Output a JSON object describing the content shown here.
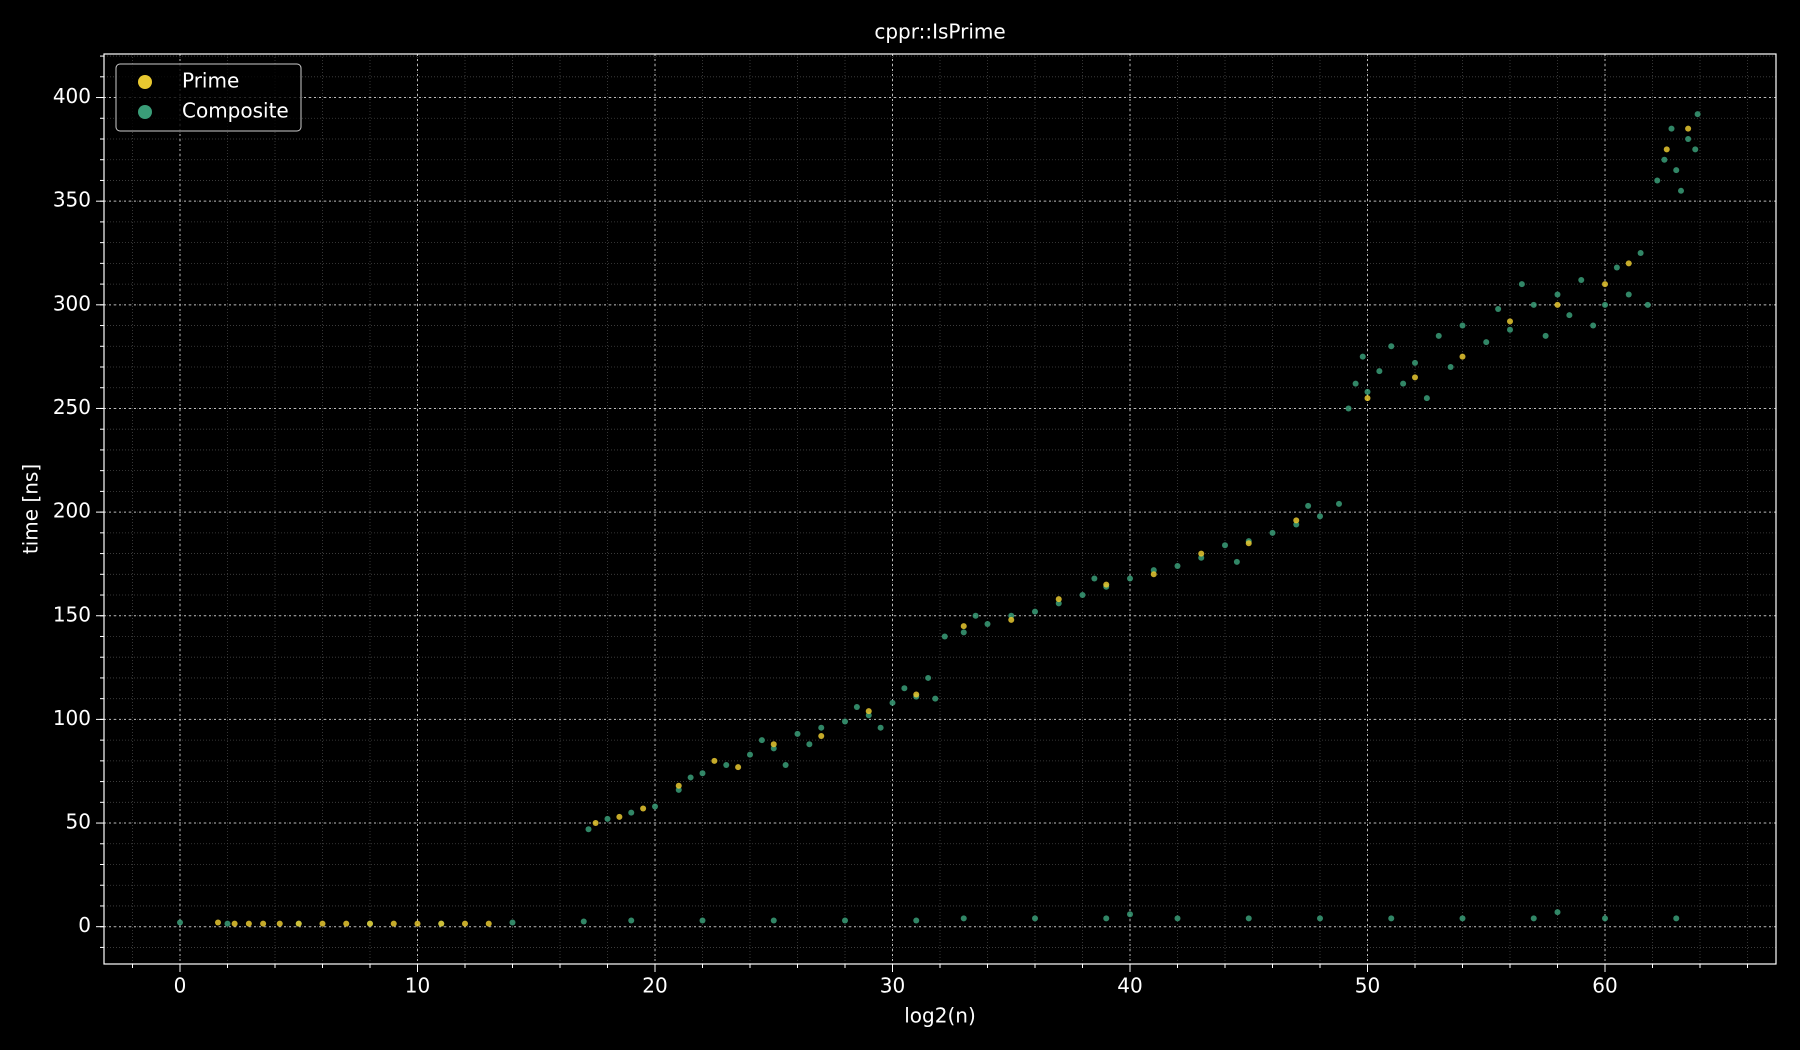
{
  "chart_data": {
    "type": "scatter",
    "title": "cppr::IsPrime",
    "x_label": "log2(n)",
    "y_label": "time [ns]",
    "xlim": [
      -3.2,
      67.2
    ],
    "ylim": [
      -18,
      421
    ],
    "xticks": [
      0,
      10,
      20,
      30,
      40,
      50,
      60
    ],
    "yticks": [
      0,
      50,
      100,
      150,
      200,
      250,
      300,
      350,
      400
    ],
    "grid": true,
    "minor_grid": true,
    "legend": "upper left",
    "series": [
      {
        "name": "Prime",
        "color": "#e8c830",
        "x": [
          1.6,
          2.3,
          2.9,
          3.5,
          4.2,
          5,
          6,
          7,
          8,
          9,
          10,
          11,
          12,
          13,
          17.5,
          18.5,
          19.5,
          21,
          22.5,
          23.5,
          25,
          27,
          29,
          31,
          33,
          35,
          37,
          39,
          41,
          43,
          45,
          47,
          50,
          52,
          54,
          56,
          58,
          60,
          61,
          62.6,
          63.5
        ],
        "y": [
          2,
          1.5,
          1.5,
          1.5,
          1.5,
          1.5,
          1.5,
          1.5,
          1.5,
          1.5,
          1.5,
          1.5,
          1.5,
          1.5,
          50,
          53,
          57,
          68,
          80,
          77,
          88,
          92,
          104,
          112,
          145,
          148,
          158,
          165,
          170,
          180,
          185,
          196,
          255,
          265,
          275,
          292,
          300,
          310,
          320,
          375,
          385
        ]
      },
      {
        "name": "Composite",
        "color": "#3a9d78",
        "x": [
          0,
          2,
          5,
          8,
          11,
          14,
          17,
          19,
          22,
          25,
          28,
          31,
          33,
          36,
          39,
          42,
          45,
          48,
          51,
          54,
          57,
          60,
          63,
          40,
          58,
          17.2,
          18,
          19,
          20,
          21,
          21.5,
          22,
          23,
          24,
          24.5,
          25,
          26,
          26.5,
          27,
          28,
          28.5,
          29,
          30,
          30.5,
          31,
          31.5,
          31.8,
          25.5,
          29.5,
          32.2,
          33,
          34,
          35,
          36,
          37,
          38,
          39,
          40,
          41,
          42,
          43,
          44,
          45,
          46,
          47,
          48,
          48.8,
          33.5,
          38.5,
          44.5,
          47.5,
          49.2,
          49.5,
          49.8,
          50,
          50.5,
          51,
          51.5,
          52,
          53,
          53.5,
          54,
          55,
          55.5,
          56,
          57,
          57.5,
          58,
          58.5,
          59,
          60,
          60.5,
          61,
          61.5,
          61.8,
          52.5,
          56.5,
          59.5,
          62.2,
          62.5,
          63,
          63.5,
          63.8,
          62.8,
          63.2,
          63.9
        ],
        "y": [
          2,
          1.5,
          1.5,
          1.5,
          1.5,
          2,
          2.5,
          3,
          3,
          3,
          3,
          3,
          4,
          4,
          4,
          4,
          4,
          4,
          4,
          4,
          4,
          4,
          4,
          6,
          7,
          47,
          52,
          55,
          58,
          66,
          72,
          74,
          78,
          83,
          90,
          86,
          93,
          88,
          96,
          99,
          106,
          102,
          108,
          115,
          111,
          120,
          110,
          78,
          96,
          140,
          142,
          146,
          150,
          152,
          156,
          160,
          164,
          168,
          172,
          174,
          178,
          184,
          186,
          190,
          194,
          198,
          204,
          150,
          168,
          176,
          203,
          250,
          262,
          275,
          258,
          268,
          280,
          262,
          272,
          285,
          270,
          290,
          282,
          298,
          288,
          300,
          285,
          305,
          295,
          312,
          300,
          318,
          305,
          325,
          300,
          255,
          310,
          290,
          360,
          370,
          365,
          380,
          375,
          385,
          355,
          392
        ]
      }
    ]
  }
}
